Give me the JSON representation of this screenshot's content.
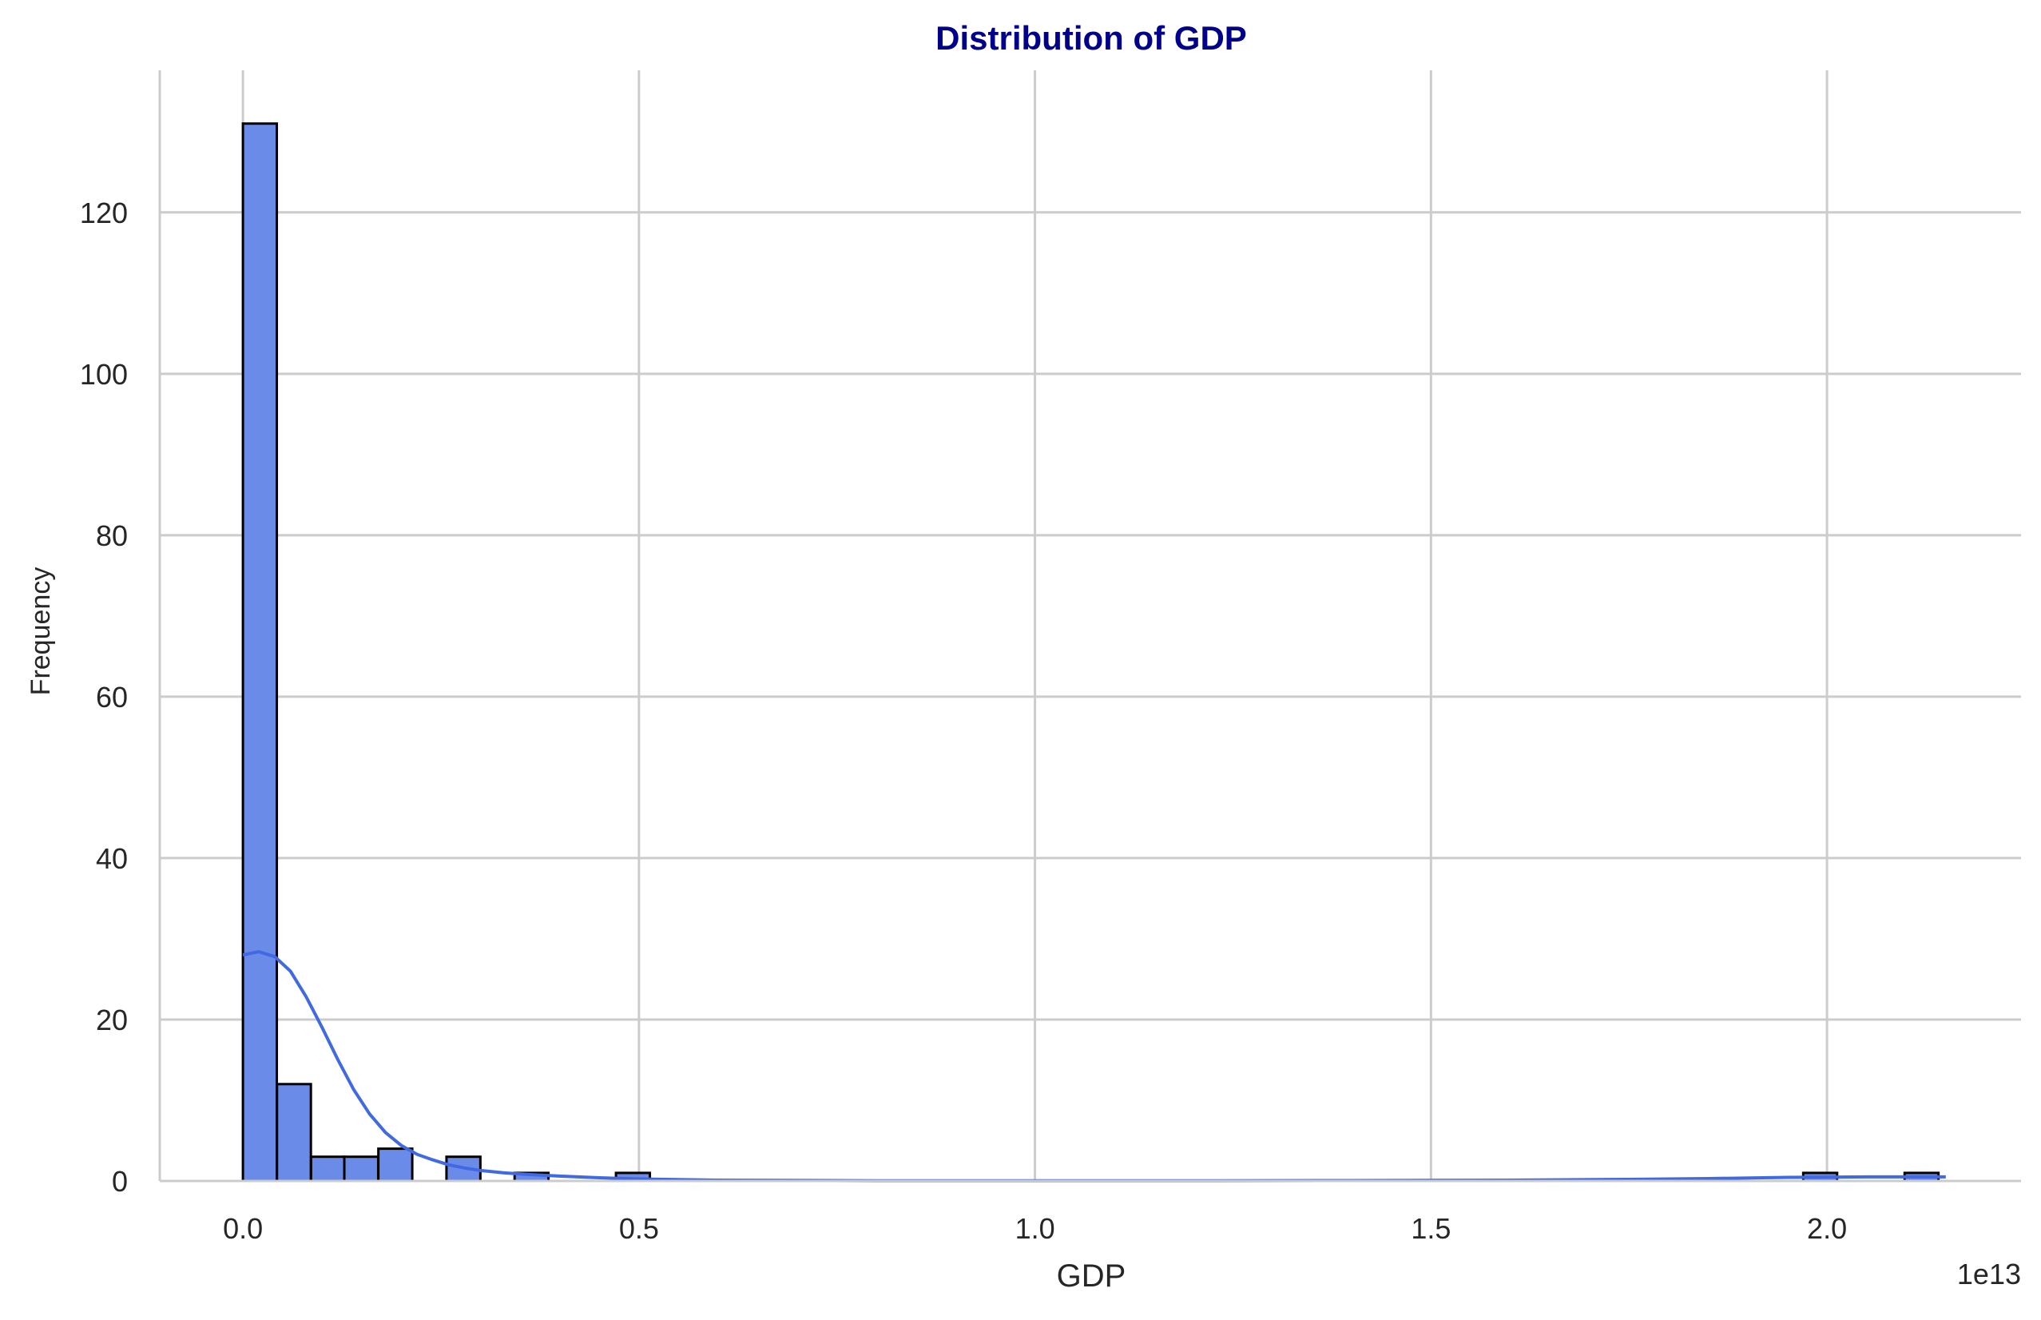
{
  "chart_data": {
    "type": "bar",
    "title": "Distribution of GDP",
    "xlabel": "GDP",
    "ylabel": "Frequency",
    "x_offset_label": "1e13",
    "x_unit": 10000000000000.0,
    "xlim": [
      -0.105,
      2.245
    ],
    "ylim": [
      0,
      137.6
    ],
    "x_ticks": [
      0.0,
      0.5,
      1.0,
      1.5,
      2.0
    ],
    "x_tick_labels": [
      "0.0",
      "0.5",
      "1.0",
      "1.5",
      "2.0"
    ],
    "y_ticks": [
      0,
      20,
      40,
      60,
      80,
      100,
      120
    ],
    "y_tick_labels": [
      "0",
      "20",
      "40",
      "60",
      "80",
      "100",
      "120"
    ],
    "grid": true,
    "bin_width": 0.0428,
    "bins": [
      {
        "x0": 0.0,
        "count": 131
      },
      {
        "x0": 0.043,
        "count": 12
      },
      {
        "x0": 0.086,
        "count": 3
      },
      {
        "x0": 0.128,
        "count": 3
      },
      {
        "x0": 0.171,
        "count": 4
      },
      {
        "x0": 0.257,
        "count": 3
      },
      {
        "x0": 0.343,
        "count": 1
      },
      {
        "x0": 0.471,
        "count": 1
      },
      {
        "x0": 1.97,
        "count": 1
      },
      {
        "x0": 2.098,
        "count": 1
      }
    ],
    "kde": {
      "x": [
        0.0,
        0.02,
        0.04,
        0.06,
        0.08,
        0.1,
        0.12,
        0.14,
        0.16,
        0.18,
        0.2,
        0.22,
        0.24,
        0.26,
        0.28,
        0.3,
        0.33,
        0.36,
        0.4,
        0.45,
        0.5,
        0.6,
        0.8,
        1.0,
        1.2,
        1.4,
        1.6,
        1.75,
        1.85,
        1.95,
        2.05,
        2.15
      ],
      "y": [
        28.0,
        28.4,
        27.8,
        26.0,
        22.8,
        19.0,
        15.0,
        11.3,
        8.3,
        6.0,
        4.4,
        3.3,
        2.6,
        2.0,
        1.6,
        1.3,
        1.0,
        0.8,
        0.6,
        0.4,
        0.25,
        0.1,
        0.03,
        0.02,
        0.02,
        0.05,
        0.1,
        0.2,
        0.3,
        0.45,
        0.5,
        0.5
      ]
    },
    "colors": {
      "bar_fill": "#6a8be8",
      "bar_edge": "#000000",
      "kde_line": "#4169e1",
      "grid": "#cccccc",
      "spine": "#cccccc",
      "title": "#00008b",
      "text": "#262626"
    }
  }
}
